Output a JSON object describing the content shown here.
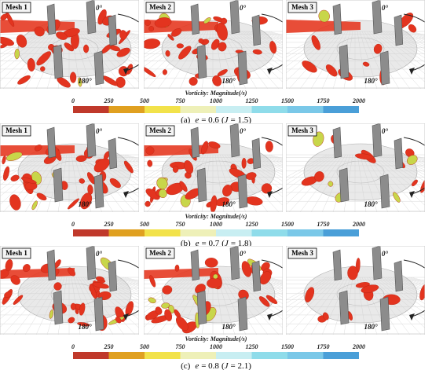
{
  "rows": [
    {
      "panels": [
        {
          "label": "Mesh 1",
          "top_angle": "0°",
          "bottom_angle": "180°"
        },
        {
          "label": "Mesh 2",
          "top_angle": "0°",
          "bottom_angle": "180°"
        },
        {
          "label": "Mesh 3",
          "top_angle": "0°",
          "bottom_angle": "180°"
        }
      ],
      "colorbar": {
        "title": "Vorticity: Magnitude(/s)",
        "ticks": [
          0,
          250,
          500,
          750,
          1000,
          1250,
          1500,
          1750,
          2000
        ]
      },
      "caption": {
        "letter": "(a)",
        "e_symbol": "e",
        "e_value": "= 0.6",
        "j_open": "(",
        "j_symbol": "J",
        "j_value": "= 1.5)"
      }
    },
    {
      "panels": [
        {
          "label": "Mesh 1",
          "top_angle": "0°",
          "bottom_angle": "180°"
        },
        {
          "label": "Mesh 2",
          "top_angle": "0°",
          "bottom_angle": "180°"
        },
        {
          "label": "Mesh 3",
          "top_angle": "0°",
          "bottom_angle": "180°"
        }
      ],
      "colorbar": {
        "title": "Vorticity: Magnitude(/s)",
        "ticks": [
          0,
          250,
          500,
          750,
          1000,
          1250,
          1500,
          1750,
          2000
        ]
      },
      "caption": {
        "letter": "(b)",
        "e_symbol": "e",
        "e_value": "= 0.7",
        "j_open": "(",
        "j_symbol": "J",
        "j_value": "= 1.8)"
      }
    },
    {
      "panels": [
        {
          "label": "Mesh 1",
          "top_angle": "0°",
          "bottom_angle": "180°"
        },
        {
          "label": "Mesh 2",
          "top_angle": "0°",
          "bottom_angle": "180°"
        },
        {
          "label": "Mesh 3",
          "top_angle": "0°",
          "bottom_angle": "180°"
        }
      ],
      "colorbar": {
        "title": "Vorticity: Magnitude(/s)",
        "ticks": [
          0,
          250,
          500,
          750,
          1000,
          1250,
          1500,
          1750,
          2000
        ]
      },
      "caption": {
        "letter": "(c)",
        "e_symbol": "e",
        "e_value": "= 0.8",
        "j_open": "(",
        "j_symbol": "J",
        "j_value": "= 2.1)"
      }
    }
  ]
}
